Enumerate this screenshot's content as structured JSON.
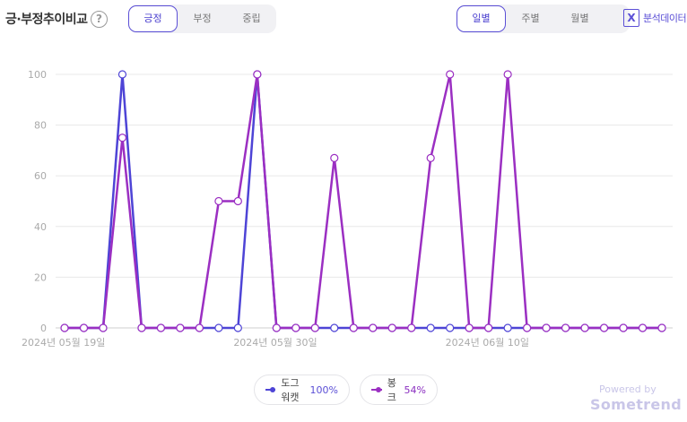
{
  "header": {
    "title": "긍·부정추이비교",
    "help_icon": "question-icon",
    "sentiment_tabs": [
      "긍정",
      "부정",
      "중립"
    ],
    "period_tabs": [
      "일별",
      "주별",
      "월별"
    ],
    "export_icon": "excel-icon",
    "export_label": "분석데이터"
  },
  "legend": [
    {
      "name": "도그워캣",
      "pct": "100%",
      "color": "#4e44d6"
    },
    {
      "name": "봉크",
      "pct": "54%",
      "color": "#9b2fc2"
    }
  ],
  "footer": {
    "powered": "Powered by",
    "brand": "Sometrend"
  },
  "chart_data": {
    "type": "line",
    "title": "",
    "xlabel": "",
    "ylabel": "",
    "ylim": [
      0,
      100
    ],
    "yticks": [
      0,
      20,
      40,
      60,
      80,
      100
    ],
    "x_tick_labels": [
      {
        "index": 0,
        "label": "2024년 05월 19일"
      },
      {
        "index": 11,
        "label": "2024년 05월 30일"
      },
      {
        "index": 22,
        "label": "2024년 06월 10일"
      }
    ],
    "categories": [
      "2024-05-19",
      "2024-05-20",
      "2024-05-21",
      "2024-05-22",
      "2024-05-23",
      "2024-05-24",
      "2024-05-25",
      "2024-05-26",
      "2024-05-27",
      "2024-05-28",
      "2024-05-29",
      "2024-05-30",
      "2024-05-31",
      "2024-06-01",
      "2024-06-02",
      "2024-06-03",
      "2024-06-04",
      "2024-06-05",
      "2024-06-06",
      "2024-06-07",
      "2024-06-08",
      "2024-06-09",
      "2024-06-10",
      "2024-06-11",
      "2024-06-12",
      "2024-06-13",
      "2024-06-14",
      "2024-06-15",
      "2024-06-16",
      "2024-06-17",
      "2024-06-18",
      "2024-06-19"
    ],
    "series": [
      {
        "name": "도그워캣",
        "color": "#4e44d6",
        "values": [
          0,
          0,
          0,
          100,
          0,
          0,
          0,
          0,
          0,
          0,
          100,
          0,
          0,
          0,
          0,
          0,
          0,
          0,
          0,
          0,
          0,
          0,
          0,
          0,
          0,
          0,
          0,
          0,
          0,
          0,
          0,
          0
        ]
      },
      {
        "name": "봉크",
        "color": "#9b2fc2",
        "values": [
          0,
          0,
          0,
          75,
          0,
          0,
          0,
          0,
          50,
          50,
          100,
          0,
          0,
          0,
          67,
          0,
          0,
          0,
          0,
          67,
          100,
          0,
          0,
          100,
          0,
          0,
          0,
          0,
          0,
          0,
          0,
          0
        ]
      }
    ],
    "grid": true
  }
}
